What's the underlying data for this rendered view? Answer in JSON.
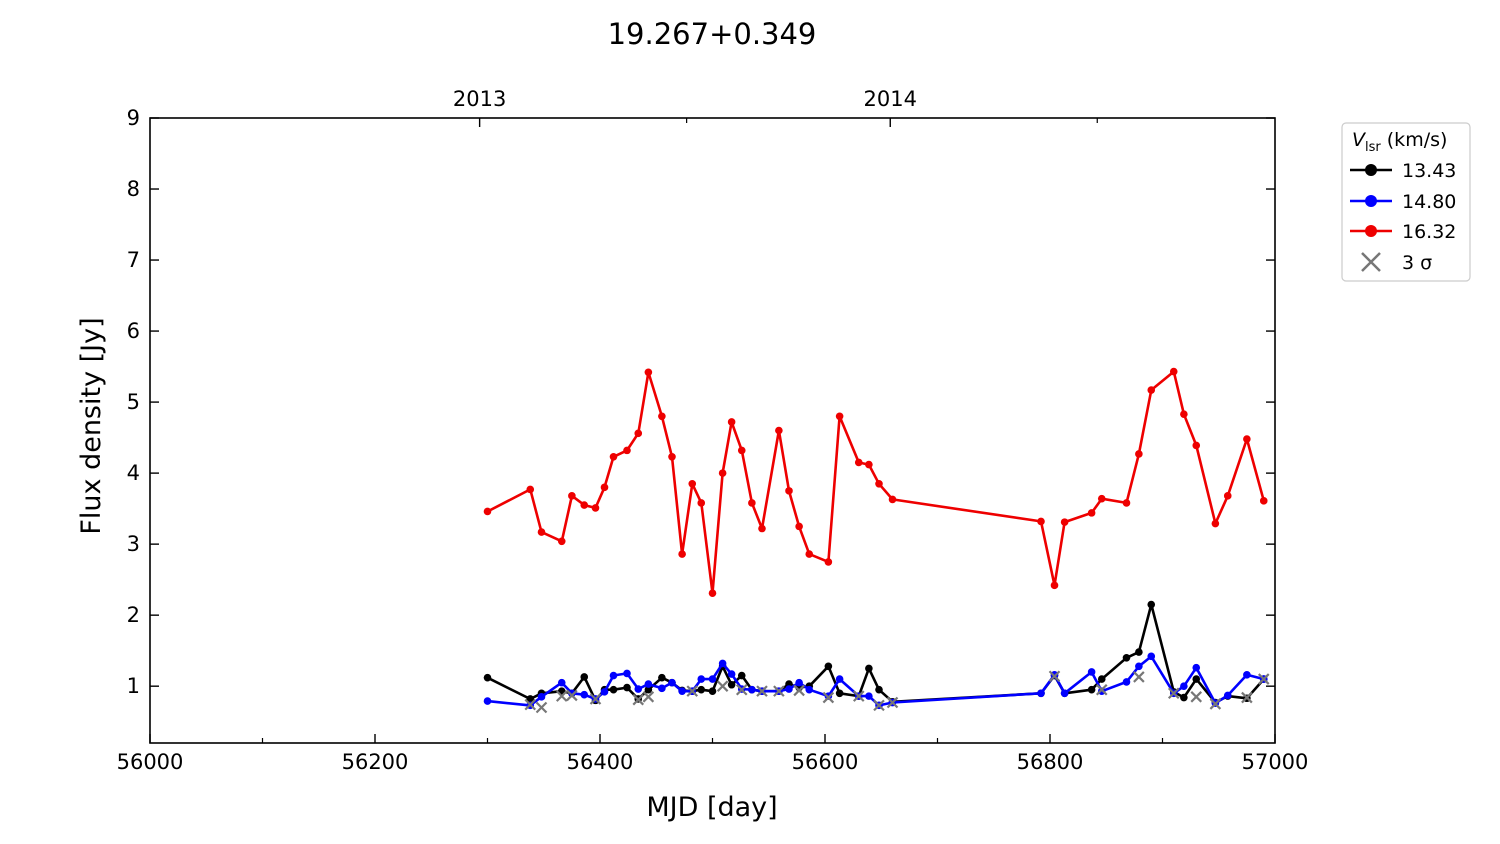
{
  "chart_data": {
    "type": "line",
    "title": "19.267+0.349",
    "xlabel": "MJD [day]",
    "ylabel": "Flux density [Jy]",
    "xlim": [
      56000,
      57000
    ],
    "ylim": [
      0.2,
      9
    ],
    "xticks": [
      56000,
      56200,
      56400,
      56600,
      56800,
      57000
    ],
    "yticks": [
      1,
      2,
      3,
      4,
      5,
      6,
      7,
      8,
      9
    ],
    "top_axis": {
      "ticks": [
        {
          "label": "2013",
          "mjd": 56293
        },
        {
          "label": "2014",
          "mjd": 56658
        }
      ],
      "minor_mjd": [
        56477,
        56842
      ]
    },
    "grid": false,
    "legend": {
      "placement": "outside-right-top",
      "title_symbol": "V",
      "title_sub": "lsr",
      "title_unit": " (km/s)",
      "sigma_label": "3 σ"
    },
    "series": [
      {
        "name": "13.43",
        "color": "#000000",
        "x": [
          56300,
          56338,
          56348,
          56366,
          56375,
          56386,
          56396,
          56404,
          56412,
          56424,
          56434,
          56443,
          56455,
          56464,
          56473,
          56482,
          56490,
          56500,
          56509,
          56517,
          56526,
          56535,
          56544,
          56559,
          56568,
          56577,
          56586,
          56603,
          56613,
          56630,
          56639,
          56648,
          56660,
          56792,
          56804,
          56813,
          56837,
          56846,
          56868,
          56879,
          56890,
          56910,
          56919,
          56930,
          56947,
          56958,
          56975,
          56990
        ],
        "y": [
          1.12,
          0.82,
          0.9,
          0.93,
          0.9,
          1.13,
          0.8,
          0.95,
          0.95,
          0.98,
          0.82,
          0.95,
          1.12,
          1.05,
          0.94,
          0.93,
          0.95,
          0.93,
          1.28,
          1.02,
          1.15,
          0.95,
          0.93,
          0.93,
          1.03,
          0.98,
          1.0,
          1.28,
          0.9,
          0.86,
          1.25,
          0.95,
          0.78,
          0.9,
          1.15,
          0.9,
          0.95,
          1.1,
          1.4,
          1.48,
          2.15,
          0.92,
          0.84,
          1.1,
          0.77,
          0.86,
          0.83,
          1.1
        ]
      },
      {
        "name": "14.80",
        "color": "#0000ff",
        "x": [
          56300,
          56338,
          56348,
          56366,
          56375,
          56386,
          56396,
          56404,
          56412,
          56424,
          56434,
          56443,
          56455,
          56464,
          56473,
          56482,
          56490,
          56500,
          56509,
          56517,
          56526,
          56535,
          56544,
          56559,
          56568,
          56577,
          56586,
          56603,
          56613,
          56630,
          56639,
          56648,
          56660,
          56792,
          56804,
          56813,
          56837,
          56846,
          56868,
          56879,
          56890,
          56910,
          56919,
          56930,
          56947,
          56958,
          56975,
          56990
        ],
        "y": [
          0.79,
          0.73,
          0.85,
          1.05,
          0.9,
          0.88,
          0.82,
          0.92,
          1.15,
          1.18,
          0.96,
          1.03,
          0.97,
          1.05,
          0.93,
          0.93,
          1.1,
          1.1,
          1.32,
          1.17,
          0.96,
          0.95,
          0.93,
          0.93,
          0.96,
          1.05,
          0.95,
          0.86,
          1.1,
          0.86,
          0.86,
          0.73,
          0.77,
          0.9,
          1.16,
          0.9,
          1.2,
          0.93,
          1.06,
          1.28,
          1.42,
          0.9,
          1.0,
          1.26,
          0.76,
          0.87,
          1.16,
          1.1
        ]
      },
      {
        "name": "16.32",
        "color": "#ee0000",
        "x": [
          56300,
          56338,
          56348,
          56366,
          56375,
          56386,
          56396,
          56404,
          56412,
          56424,
          56434,
          56443,
          56455,
          56464,
          56473,
          56482,
          56490,
          56500,
          56509,
          56517,
          56526,
          56535,
          56544,
          56559,
          56568,
          56577,
          56586,
          56603,
          56613,
          56630,
          56639,
          56648,
          56660,
          56792,
          56804,
          56813,
          56837,
          56846,
          56868,
          56879,
          56890,
          56910,
          56919,
          56930,
          56947,
          56958,
          56975,
          56990
        ],
        "y": [
          3.46,
          3.77,
          3.17,
          3.04,
          3.68,
          3.55,
          3.51,
          3.8,
          4.23,
          4.32,
          4.56,
          5.42,
          4.8,
          4.23,
          2.86,
          3.85,
          3.58,
          2.31,
          4.0,
          4.72,
          4.32,
          3.58,
          3.22,
          4.6,
          3.75,
          3.25,
          2.86,
          2.75,
          4.8,
          4.15,
          4.12,
          3.85,
          3.63,
          3.32,
          2.42,
          3.31,
          3.44,
          3.64,
          3.58,
          4.27,
          5.17,
          5.43,
          4.83,
          4.39,
          3.29,
          3.68,
          4.48,
          3.61
        ]
      }
    ],
    "upper_limits": {
      "name": "3 σ",
      "color": "#777777",
      "x": [
        56338,
        56348,
        56366,
        56375,
        56396,
        56434,
        56443,
        56482,
        56509,
        56526,
        56544,
        56559,
        56577,
        56603,
        56630,
        56648,
        56660,
        56804,
        56846,
        56879,
        56910,
        56930,
        56947,
        56975,
        56990
      ],
      "y": [
        0.74,
        0.7,
        0.86,
        0.87,
        0.82,
        0.81,
        0.85,
        0.93,
        1.0,
        0.95,
        0.93,
        0.93,
        0.94,
        0.84,
        0.86,
        0.73,
        0.77,
        1.14,
        0.95,
        1.13,
        0.9,
        0.85,
        0.75,
        0.84,
        1.1
      ]
    }
  }
}
